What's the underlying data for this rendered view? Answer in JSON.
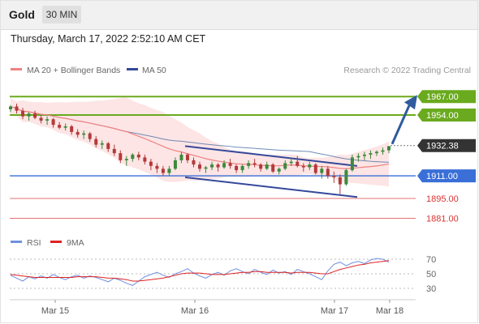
{
  "header": {
    "symbol": "Gold",
    "timeframe": "30 MIN",
    "datetime": "Thursday, March 17, 2022 2:52:10 AM CET"
  },
  "legend": {
    "ma20_label": "MA 20 + Bollinger Bands",
    "ma50_label": "MA 50",
    "copyright": "Research © 2022 Trading Central"
  },
  "rsi_legend": {
    "rsi_label": "RSI",
    "ma_label": "9MA"
  },
  "colors": {
    "ma20": "#f08080",
    "ma50": "#4a6fa5",
    "bollinger": "#fde0e0",
    "resistance": "#6aaa1e",
    "support_blue": "#3a6fd8",
    "support_red": "#e57373",
    "channel": "#34489a",
    "arrow": "#2f5b9e",
    "candle_up": "#3c8a3c",
    "candle_down": "#b33a3a",
    "current": "#333333",
    "rsi": "#6f8fe0",
    "rsi_ma": "#dd2222"
  },
  "chart_data": {
    "type": "candlestick",
    "y_range": [
      1875,
      1978
    ],
    "x_labels": [
      "Mar 15",
      "Mar 16",
      "Mar 17",
      "Mar 18"
    ],
    "levels": [
      {
        "value": 1967.0,
        "label": "1967.00",
        "kind": "resistance"
      },
      {
        "value": 1954.0,
        "label": "1954.00",
        "kind": "resistance"
      },
      {
        "value": 1932.38,
        "label": "1932.38",
        "kind": "current"
      },
      {
        "value": 1911.0,
        "label": "1911.00",
        "kind": "pivot"
      },
      {
        "value": 1895.0,
        "label": "1895.00",
        "kind": "support"
      },
      {
        "value": 1881.0,
        "label": "1881.00",
        "kind": "support"
      }
    ],
    "channel_upper": [
      {
        "i": 0,
        "v": 1932
      },
      {
        "i": 58,
        "v": 1918
      }
    ],
    "channel_lower": [
      {
        "i": 0,
        "v": 1910
      },
      {
        "i": 58,
        "v": 1896
      }
    ],
    "candles": [
      [
        1958,
        1961,
        1956,
        1960
      ],
      [
        1960,
        1962,
        1955,
        1957
      ],
      [
        1957,
        1959,
        1951,
        1953
      ],
      [
        1953,
        1956,
        1950,
        1955
      ],
      [
        1955,
        1957,
        1951,
        1952
      ],
      [
        1952,
        1954,
        1948,
        1950
      ],
      [
        1950,
        1953,
        1947,
        1951
      ],
      [
        1951,
        1952,
        1945,
        1947
      ],
      [
        1947,
        1949,
        1944,
        1945
      ],
      [
        1945,
        1948,
        1943,
        1946
      ],
      [
        1946,
        1947,
        1940,
        1942
      ],
      [
        1942,
        1944,
        1938,
        1940
      ],
      [
        1940,
        1943,
        1937,
        1941
      ],
      [
        1941,
        1942,
        1935,
        1937
      ],
      [
        1937,
        1939,
        1931,
        1933
      ],
      [
        1933,
        1936,
        1930,
        1934
      ],
      [
        1934,
        1935,
        1928,
        1930
      ],
      [
        1930,
        1933,
        1925,
        1927
      ],
      [
        1927,
        1929,
        1920,
        1922
      ],
      [
        1922,
        1925,
        1918,
        1923
      ],
      [
        1923,
        1927,
        1921,
        1926
      ],
      [
        1926,
        1928,
        1922,
        1924
      ],
      [
        1924,
        1926,
        1919,
        1921
      ],
      [
        1921,
        1923,
        1915,
        1918
      ],
      [
        1918,
        1920,
        1913,
        1916
      ],
      [
        1916,
        1918,
        1911,
        1913
      ],
      [
        1913,
        1918,
        1911,
        1916
      ],
      [
        1916,
        1924,
        1915,
        1922
      ],
      [
        1922,
        1928,
        1920,
        1926
      ],
      [
        1926,
        1927,
        1920,
        1922
      ],
      [
        1922,
        1924,
        1917,
        1919
      ],
      [
        1919,
        1921,
        1914,
        1916
      ],
      [
        1916,
        1918,
        1913,
        1917
      ],
      [
        1917,
        1921,
        1915,
        1919
      ],
      [
        1919,
        1920,
        1914,
        1917
      ],
      [
        1917,
        1922,
        1916,
        1920
      ],
      [
        1920,
        1923,
        1916,
        1918
      ],
      [
        1918,
        1919,
        1913,
        1915
      ],
      [
        1915,
        1919,
        1913,
        1918
      ],
      [
        1918,
        1922,
        1916,
        1920
      ],
      [
        1920,
        1923,
        1917,
        1919
      ],
      [
        1919,
        1920,
        1914,
        1916
      ],
      [
        1916,
        1921,
        1915,
        1919
      ],
      [
        1919,
        1920,
        1913,
        1914
      ],
      [
        1914,
        1917,
        1912,
        1916
      ],
      [
        1916,
        1922,
        1915,
        1920
      ],
      [
        1920,
        1924,
        1918,
        1921
      ],
      [
        1921,
        1925,
        1917,
        1918
      ],
      [
        1918,
        1920,
        1914,
        1917
      ],
      [
        1917,
        1921,
        1915,
        1919
      ],
      [
        1919,
        1920,
        1912,
        1913
      ],
      [
        1913,
        1918,
        1909,
        1916
      ],
      [
        1916,
        1918,
        1909,
        1911
      ],
      [
        1911,
        1914,
        1906,
        1910
      ],
      [
        1910,
        1912,
        1898,
        1905
      ],
      [
        1905,
        1916,
        1904,
        1915
      ],
      [
        1915,
        1926,
        1914,
        1924
      ],
      [
        1924,
        1927,
        1921,
        1925
      ],
      [
        1925,
        1928,
        1922,
        1926
      ],
      [
        1926,
        1929,
        1923,
        1927
      ],
      [
        1927,
        1929,
        1925,
        1928
      ],
      [
        1928,
        1931,
        1926,
        1929
      ],
      [
        1929,
        1932,
        1927,
        1932
      ]
    ],
    "rsi": {
      "levels": [
        70,
        50,
        30
      ],
      "rsi_values": [
        48,
        44,
        40,
        46,
        43,
        47,
        44,
        49,
        45,
        42,
        46,
        48,
        44,
        47,
        45,
        42,
        39,
        44,
        41,
        37,
        34,
        40,
        46,
        49,
        52,
        48,
        45,
        50,
        53,
        57,
        51,
        47,
        44,
        49,
        52,
        48,
        54,
        57,
        53,
        50,
        56,
        52,
        49,
        55,
        51,
        53,
        49,
        56,
        53,
        50,
        46,
        42,
        54,
        63,
        66,
        61,
        65,
        67,
        64,
        69,
        71,
        70,
        66
      ],
      "ma_values": [
        49,
        48,
        47,
        46,
        45,
        45,
        45,
        45,
        45,
        45,
        45,
        46,
        46,
        46,
        46,
        45,
        44,
        44,
        43,
        42,
        40,
        40,
        41,
        42,
        43,
        44,
        46,
        48,
        50,
        51,
        51,
        51,
        50,
        49,
        49,
        49,
        50,
        51,
        52,
        52,
        53,
        53,
        52,
        52,
        52,
        52,
        51,
        52,
        52,
        52,
        51,
        50,
        50,
        53,
        56,
        58,
        60,
        62,
        63,
        65,
        66,
        67,
        68
      ]
    }
  }
}
